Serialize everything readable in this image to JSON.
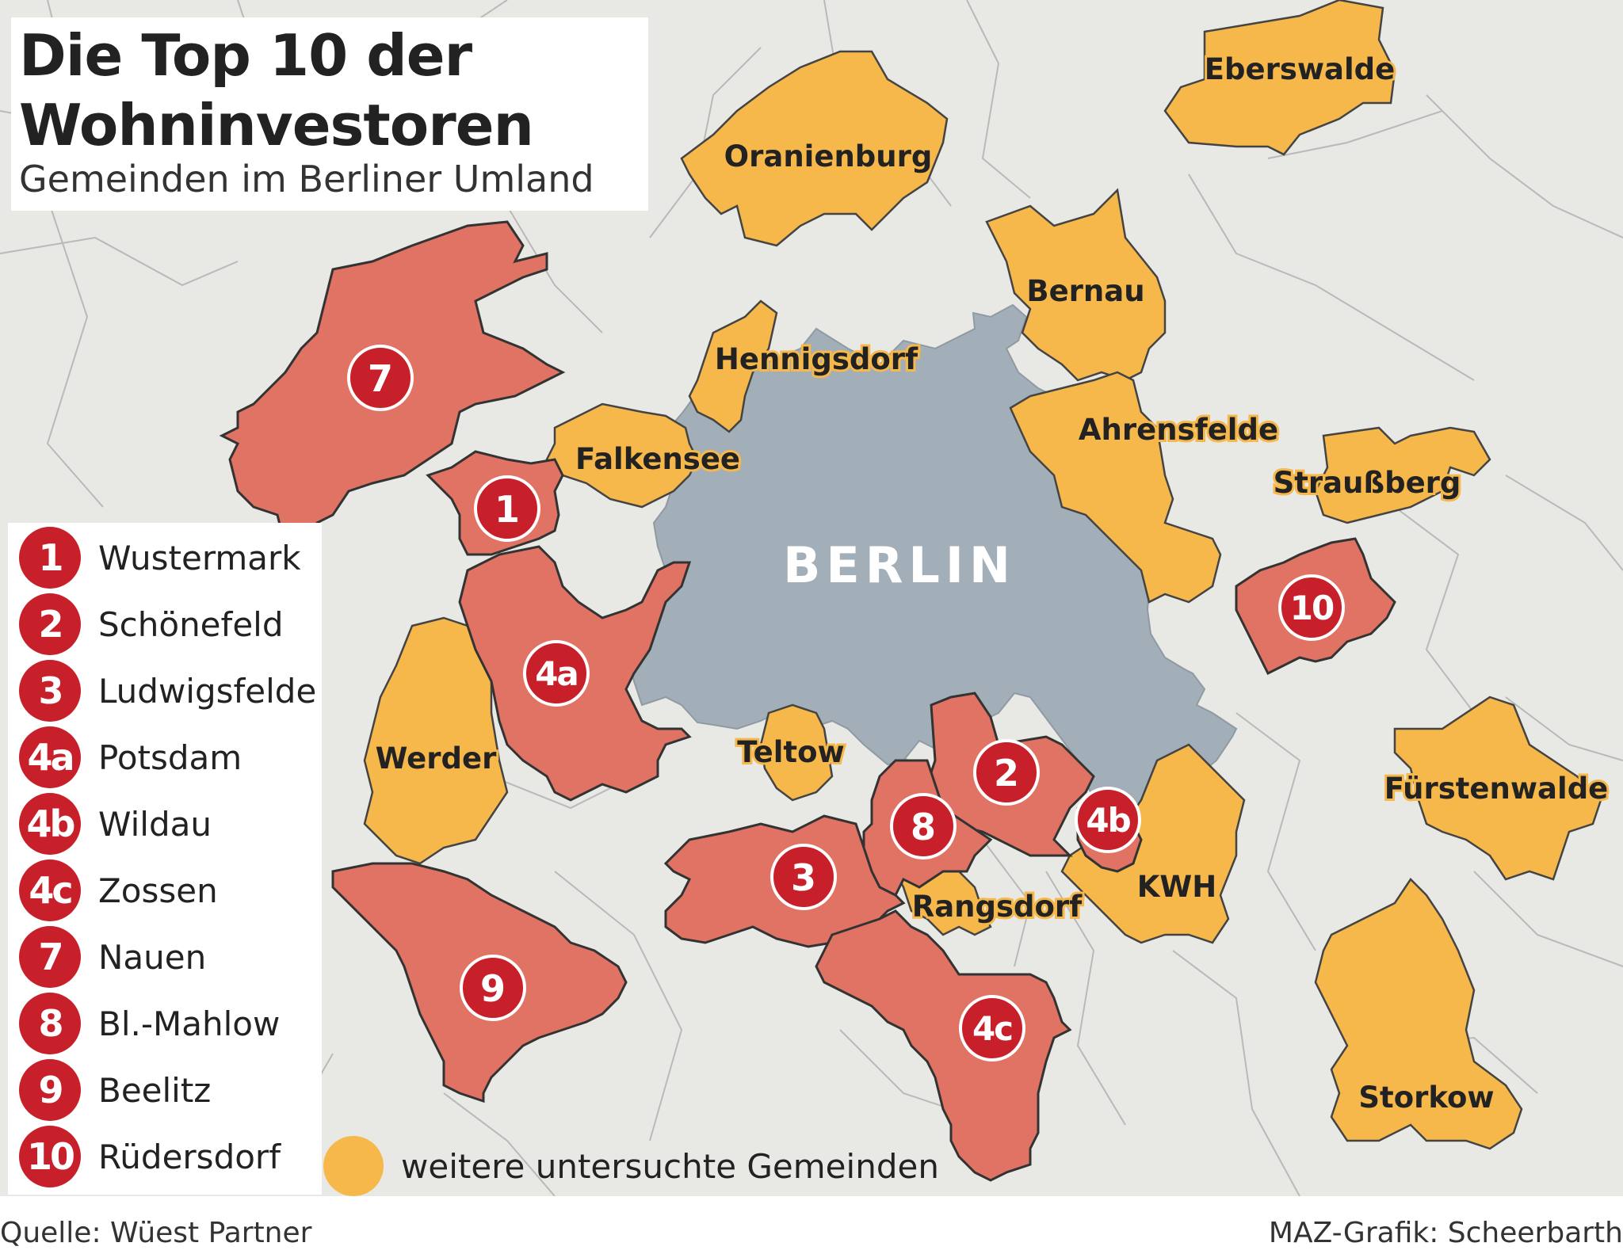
{
  "title_line1": "Die Top 10 der",
  "title_line2": "Wohninvestoren",
  "subtitle": "Gemeinden im Berliner Umland",
  "city": "BERLIN",
  "top10": [
    {
      "rank": "1",
      "name": "Wustermark"
    },
    {
      "rank": "2",
      "name": "Schönefeld"
    },
    {
      "rank": "3",
      "name": "Ludwigsfelde"
    },
    {
      "rank": "4a",
      "name": "Potsdam"
    },
    {
      "rank": "4b",
      "name": "Wildau"
    },
    {
      "rank": "4c",
      "name": "Zossen"
    },
    {
      "rank": "7",
      "name": "Nauen"
    },
    {
      "rank": "8",
      "name": "Bl.-Mahlow"
    },
    {
      "rank": "9",
      "name": "Beelitz"
    },
    {
      "rank": "10",
      "name": "Rüdersdorf"
    }
  ],
  "other_municipalities": [
    "Eberswalde",
    "Oranienburg",
    "Bernau",
    "Hennigsdorf",
    "Ahrensfelde",
    "Falkensee",
    "Straußberg",
    "Werder",
    "Teltow",
    "Fürstenwalde",
    "Rangsdorf",
    "KWH",
    "Storkow"
  ],
  "extra_legend_label": "weitere untersuchte Gemeinden",
  "source": "Quelle: Wüest Partner",
  "credit": "MAZ-Grafik: Scheerbarth",
  "colors": {
    "top10_fill": "#e07363",
    "badge": "#c8202a",
    "other_fill": "#f7b84b",
    "berlin": "#a3afb8",
    "background": "#e8e8e4"
  }
}
